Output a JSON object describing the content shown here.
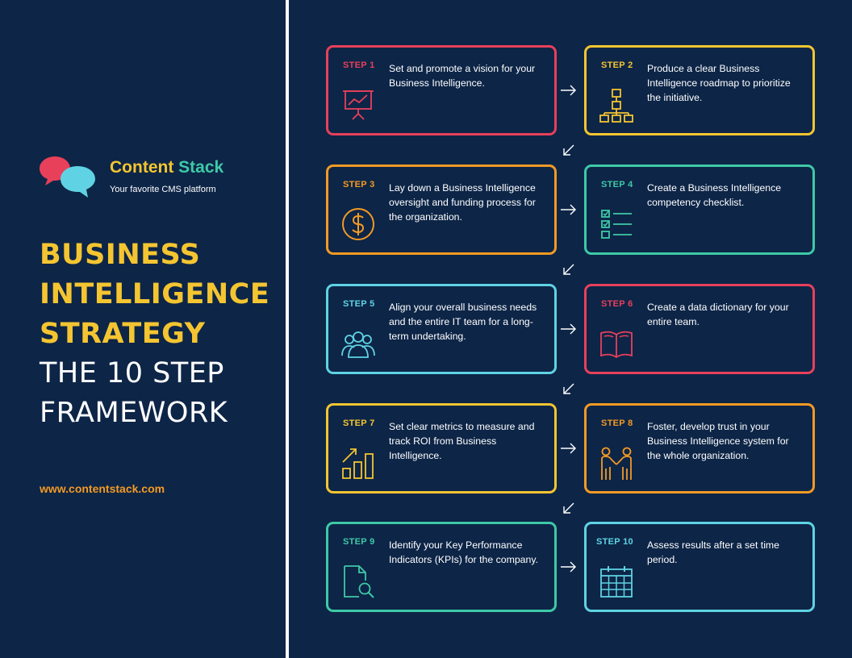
{
  "brand": {
    "name_part1": "Content",
    "name_part2": "Stack",
    "tagline": "Your favorite CMS platform",
    "url": "www.contentstack.com"
  },
  "headline": {
    "line1": "BUSINESS",
    "line2": "INTELLIGENCE",
    "line3": "STRATEGY",
    "line4": "THE 10 STEP",
    "line5": "FRAMEWORK"
  },
  "colors": {
    "background": "#0d2547",
    "pink": "#e8405b",
    "yellow": "#f4c531",
    "orange": "#f39a24",
    "green": "#3ec9a7",
    "cyan": "#5fd3e3",
    "white": "#ffffff"
  },
  "steps": [
    {
      "label": "STEP 1",
      "text": "Set and promote a vision for your Business Intelligence.",
      "color": "#e8405b",
      "icon": "presentation-chart-icon"
    },
    {
      "label": "STEP 2",
      "text": "Produce a clear Business Intelligence roadmap to prioritize the initiative.",
      "color": "#f4c531",
      "icon": "hierarchy-chart-icon"
    },
    {
      "label": "STEP 3",
      "text": "Lay down a Business Intelligence oversight and funding process for the organization.",
      "color": "#f39a24",
      "icon": "dollar-coin-icon"
    },
    {
      "label": "STEP 4",
      "text": "Create a Business Intelligence competency checklist.",
      "color": "#3ec9a7",
      "icon": "checklist-icon"
    },
    {
      "label": "STEP 5",
      "text": "Align your overall business needs and the entire IT team for a long-term undertaking.",
      "color": "#5fd3e3",
      "icon": "team-icon"
    },
    {
      "label": "STEP 6",
      "text": "Create a data dictionary for your entire team.",
      "color": "#e8405b",
      "icon": "open-book-icon"
    },
    {
      "label": "STEP 7",
      "text": "Set clear metrics to measure and track ROI from Business Intelligence.",
      "color": "#f4c531",
      "icon": "growth-bars-icon"
    },
    {
      "label": "STEP 8",
      "text": "Foster, develop trust in your Business Intelligence system for the whole organization.",
      "color": "#f39a24",
      "icon": "handshake-people-icon"
    },
    {
      "label": "STEP 9",
      "text": "Identify your Key Performance Indicators (KPIs) for the company.",
      "color": "#3ec9a7",
      "icon": "document-search-icon"
    },
    {
      "label": "STEP 10",
      "text": "Assess results after a set time period.",
      "color": "#5fd3e3",
      "icon": "calendar-icon"
    }
  ]
}
